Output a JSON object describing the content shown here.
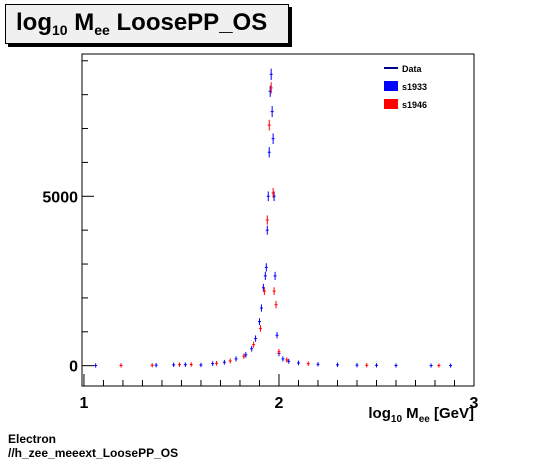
{
  "title": {
    "base": "log",
    "sub": "10",
    "mid": " M",
    "sub2": "ee",
    "rest": " LoosePP_OS"
  },
  "footer": {
    "line1": "Electron",
    "line2": "//h_zee_meeext_LoosePP_OS"
  },
  "chart_data": {
    "type": "scatter",
    "title": "log10 Mee LoosePP_OS",
    "xlabel": {
      "base": "log",
      "sub": "10",
      "mid": " M",
      "sub2": "ee",
      "rest": " [GeV]"
    },
    "xlim": [
      0.99,
      3.0
    ],
    "ylim": [
      -600,
      9200
    ],
    "x_ticks": [
      1,
      2,
      3
    ],
    "y_ticks": [
      0,
      5000
    ],
    "legend": {
      "placement": "top-right",
      "entries": [
        {
          "label": "Data",
          "style": "line",
          "color": "#00008b"
        },
        {
          "label": "s1933",
          "style": "box",
          "color": "#0000ff"
        },
        {
          "label": "s1946",
          "style": "box",
          "color": "#ff0000"
        }
      ]
    },
    "series": [
      {
        "name": "s1933",
        "color": "#0000ff",
        "x": [
          1.06,
          1.19,
          1.37,
          1.46,
          1.52,
          1.6,
          1.66,
          1.72,
          1.78,
          1.83,
          1.86,
          1.88,
          1.9,
          1.91,
          1.92,
          1.93,
          1.935,
          1.94,
          1.945,
          1.95,
          1.955,
          1.96,
          1.965,
          1.97,
          1.975,
          1.98,
          1.99,
          2.0,
          2.02,
          2.05,
          2.1,
          2.2,
          2.3,
          2.4,
          2.5,
          2.6,
          2.78,
          2.88
        ],
        "y": [
          5,
          8,
          15,
          25,
          30,
          20,
          60,
          100,
          200,
          320,
          500,
          800,
          1300,
          1700,
          2300,
          2650,
          2900,
          4000,
          5000,
          6300,
          8100,
          8600,
          7500,
          6700,
          5000,
          2650,
          900,
          360,
          200,
          130,
          80,
          40,
          25,
          15,
          10,
          6,
          4,
          3
        ]
      },
      {
        "name": "s1946",
        "color": "#ff0000",
        "x": [
          1.19,
          1.35,
          1.49,
          1.55,
          1.68,
          1.75,
          1.82,
          1.87,
          1.905,
          1.925,
          1.94,
          1.95,
          1.96,
          1.97,
          1.975,
          1.985,
          2.0,
          2.04,
          2.15,
          2.45,
          2.82
        ],
        "y": [
          6,
          12,
          30,
          35,
          70,
          140,
          280,
          620,
          1100,
          2200,
          4300,
          7100,
          8200,
          5100,
          2200,
          1800,
          410,
          170,
          60,
          12,
          4
        ]
      }
    ]
  }
}
